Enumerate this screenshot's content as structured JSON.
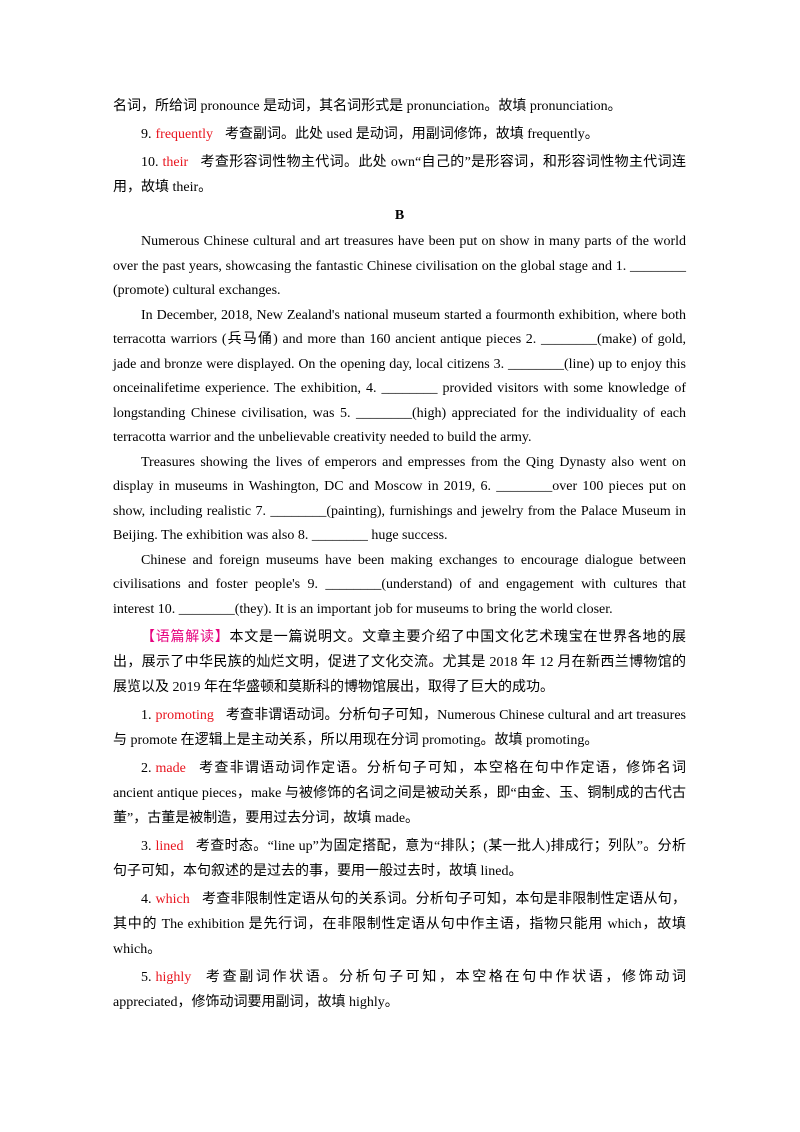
{
  "intro": "名词，所给词 pronounce 是动词，其名词形式是 pronunciation。故填 pronunciation。",
  "answers_a": [
    {
      "num": "9.",
      "answer": "frequently",
      "text": "考查副词。此处 used 是动词，用副词修饰，故填 frequently。"
    },
    {
      "num": "10.",
      "answer": "their",
      "text": "考查形容词性物主代词。此处 own“自己的”是形容词，和形容词性物主代词连用，故填 their。"
    }
  ],
  "heading": "B",
  "passage": [
    "Numerous Chinese cultural and art treasures have been put on show in many parts of the world over the past years, showcasing the fantastic Chinese civilisation on the global stage and 1. ________ (promote) cultural exchanges.",
    "In December, 2018, New Zealand's national museum started a fourmonth exhibition, where both terracotta warriors (兵马俑) and more than 160 ancient antique pieces 2. ________(make) of gold, jade and bronze were displayed. On the opening day, local citizens 3. ________(line) up to enjoy this onceinalifetime experience. The exhibition, 4. ________ provided visitors with some knowledge of longstanding Chinese civilisation, was 5. ________(high) appreciated for the individuality of each terracotta warrior and the unbelievable creativity needed to build the army.",
    "Treasures showing the lives of emperors and empresses from the Qing Dynasty also went on display in museums in Washington, DC and Moscow in 2019, 6. ________over 100 pieces put on show, including realistic 7. ________(painting), furnishings and jewelry from the Palace Museum in Beijing. The exhibition was also 8. ________ huge success.",
    "Chinese and foreign museums have been making exchanges to encourage dialogue between civilisations and foster people's 9. ________(understand) of and engagement with cultures that interest 10. ________(they). It is an important job for museums to bring the world closer."
  ],
  "analysis": {
    "label": "【语篇解读】",
    "text": "本文是一篇说明文。文章主要介绍了中国文化艺术瑰宝在世界各地的展出，展示了中华民族的灿烂文明，促进了文化交流。尤其是 2018 年 12 月在新西兰博物馆的展览以及 2019 年在华盛顿和莫斯科的博物馆展出，取得了巨大的成功。"
  },
  "answers_b": [
    {
      "num": "1.",
      "answer": "promoting",
      "text": "考查非谓语动词。分析句子可知，Numerous Chinese cultural and art treasures 与 promote 在逻辑上是主动关系，所以用现在分词 promoting。故填 promoting。"
    },
    {
      "num": "2.",
      "answer": "made",
      "text": "考查非谓语动词作定语。分析句子可知，本空格在句中作定语，修饰名词 ancient antique pieces，make 与被修饰的名词之间是被动关系，即“由金、玉、铜制成的古代古董”，古董是被制造，要用过去分词，故填 made。"
    },
    {
      "num": "3.",
      "answer": "lined",
      "text": "考查时态。“line up”为固定搭配，意为“排队；(某一批人)排成行；列队”。分析句子可知，本句叙述的是过去的事，要用一般过去时，故填 lined。"
    },
    {
      "num": "4.",
      "answer": "which",
      "text": "考查非限制性定语从句的关系词。分析句子可知，本句是非限制性定语从句，其中的 The exhibition 是先行词，在非限制性定语从句中作主语，指物只能用 which，故填 which。"
    },
    {
      "num": "5.",
      "answer": "highly",
      "text": "考查副词作状语。分析句子可知，本空格在句中作状语，修饰动词 appreciated，修饰动词要用副词，故填 highly。"
    }
  ]
}
